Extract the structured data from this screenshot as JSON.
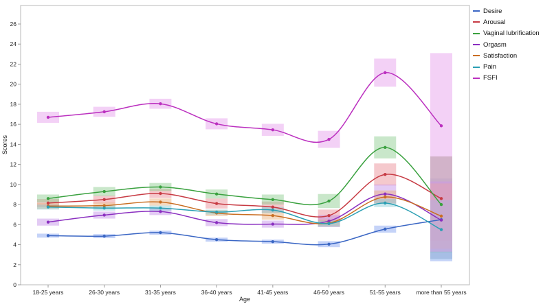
{
  "chart_data": {
    "type": "line",
    "title": "",
    "xlabel": "Age",
    "ylabel": "Scores",
    "ylim": [
      0,
      26
    ],
    "yticks": [
      0,
      2,
      4,
      6,
      8,
      10,
      12,
      14,
      16,
      18,
      20,
      22,
      24,
      26
    ],
    "categories": [
      "18-25 years",
      "26-30 years",
      "31-35 years",
      "36-40 years",
      "41-45 years",
      "46-50 years",
      "51-55 years",
      "more than 55 years"
    ],
    "legend_position": "right",
    "series": [
      {
        "name": "Desire",
        "color": "#3a66c4",
        "band_color": "#7f9ef0",
        "values": [
          4.9,
          4.85,
          5.2,
          4.5,
          4.3,
          4.05,
          5.55,
          6.5
        ],
        "ci_low": [
          4.7,
          4.65,
          5.0,
          4.3,
          4.1,
          3.75,
          5.2,
          2.35
        ],
        "ci_high": [
          5.1,
          5.05,
          5.4,
          4.7,
          4.5,
          4.35,
          5.9,
          10.6
        ]
      },
      {
        "name": "Arousal",
        "color": "#c73a43",
        "band_color": "#e98890",
        "values": [
          8.15,
          8.5,
          9.1,
          8.1,
          7.75,
          6.9,
          11.0,
          8.6
        ],
        "ci_low": [
          7.75,
          8.1,
          8.65,
          7.6,
          7.2,
          6.3,
          9.9,
          4.4
        ],
        "ci_high": [
          8.55,
          8.9,
          9.55,
          8.6,
          8.3,
          7.5,
          12.1,
          12.8
        ]
      },
      {
        "name": "Vaginal lubrification",
        "color": "#3aa13f",
        "band_color": "#88c98a",
        "values": [
          8.6,
          9.3,
          9.75,
          9.05,
          8.5,
          8.35,
          13.7,
          8.0
        ],
        "ci_low": [
          8.2,
          8.85,
          9.35,
          8.6,
          8.0,
          7.65,
          12.6,
          3.2
        ],
        "ci_high": [
          9.0,
          9.75,
          10.15,
          9.5,
          9.0,
          9.05,
          14.8,
          12.8
        ]
      },
      {
        "name": "Orgasm",
        "color": "#8a2fc0",
        "band_color": "#c28ce6",
        "values": [
          6.25,
          6.95,
          7.3,
          6.2,
          6.05,
          6.35,
          9.05,
          6.45
        ],
        "ci_low": [
          5.9,
          6.6,
          6.95,
          5.85,
          5.7,
          5.75,
          8.1,
          2.6
        ],
        "ci_high": [
          6.6,
          7.3,
          7.65,
          6.55,
          6.4,
          6.95,
          10.0,
          10.3
        ]
      },
      {
        "name": "Satisfaction",
        "color": "#c96e22",
        "band_color": "#e8ae78",
        "values": [
          7.85,
          7.9,
          8.25,
          7.15,
          6.9,
          6.15,
          8.75,
          6.85
        ],
        "ci_low": [
          7.55,
          7.6,
          7.9,
          6.85,
          6.5,
          5.8,
          8.1,
          3.6
        ],
        "ci_high": [
          8.15,
          8.2,
          8.6,
          7.45,
          7.3,
          6.5,
          9.4,
          10.1
        ]
      },
      {
        "name": "Pain",
        "color": "#2a9fb3",
        "band_color": "#84cbd6",
        "values": [
          7.75,
          7.65,
          7.65,
          7.25,
          7.45,
          6.1,
          8.15,
          5.5
        ],
        "ci_low": [
          7.5,
          7.4,
          7.4,
          7.0,
          7.15,
          5.8,
          7.75,
          2.55
        ],
        "ci_high": [
          8.0,
          7.9,
          7.9,
          7.5,
          7.75,
          6.4,
          8.55,
          8.45
        ]
      },
      {
        "name": "FSFI",
        "color": "#bb2fbf",
        "band_color": "#e49aea",
        "values": [
          16.7,
          17.25,
          18.05,
          16.05,
          15.45,
          14.5,
          21.15,
          15.85
        ],
        "ci_low": [
          16.15,
          16.75,
          17.55,
          15.5,
          14.85,
          13.65,
          19.75,
          3.3
        ],
        "ci_high": [
          17.25,
          17.75,
          18.55,
          16.6,
          16.05,
          15.35,
          22.55,
          23.1
        ]
      }
    ]
  }
}
